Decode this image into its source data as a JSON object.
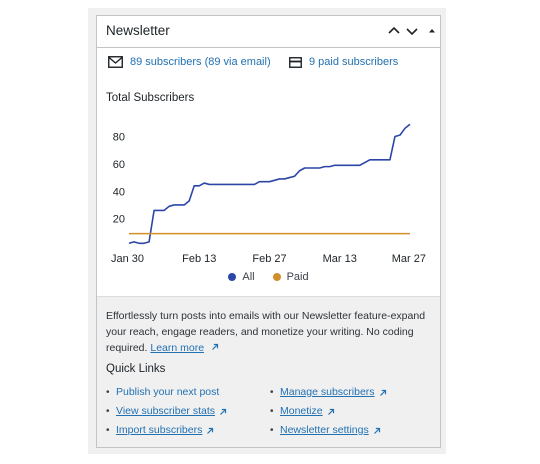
{
  "widget": {
    "title": "Newsletter"
  },
  "stats": {
    "subscribers": "89 subscribers (89 via email)",
    "paid": "9 paid subscribers"
  },
  "chart_data": {
    "type": "line",
    "title": "Total Subscribers",
    "x_ticks": [
      "Jan 30",
      "Feb 13",
      "Feb 27",
      "Mar 13",
      "Mar 27"
    ],
    "y_ticks": [
      20,
      40,
      60,
      80
    ],
    "ylim": [
      0,
      95
    ],
    "legend_position": "bottom",
    "series": [
      {
        "name": "All",
        "color": "#2c46a8",
        "x": [
          "Jan 30",
          "Jan 31",
          "Feb 1",
          "Feb 2",
          "Feb 3",
          "Feb 4",
          "Feb 5",
          "Feb 6",
          "Feb 7",
          "Feb 8",
          "Feb 9",
          "Feb 10",
          "Feb 11",
          "Feb 12",
          "Feb 13",
          "Feb 14",
          "Feb 15",
          "Feb 16",
          "Feb 17",
          "Feb 18",
          "Feb 19",
          "Feb 20",
          "Feb 21",
          "Feb 22",
          "Feb 23",
          "Feb 24",
          "Feb 25",
          "Feb 26",
          "Feb 27",
          "Feb 28",
          "Mar 1",
          "Mar 2",
          "Mar 3",
          "Mar 4",
          "Mar 5",
          "Mar 6",
          "Mar 7",
          "Mar 8",
          "Mar 9",
          "Mar 10",
          "Mar 11",
          "Mar 12",
          "Mar 13",
          "Mar 14",
          "Mar 15",
          "Mar 16",
          "Mar 17",
          "Mar 18",
          "Mar 19",
          "Mar 20",
          "Mar 21",
          "Mar 22",
          "Mar 23",
          "Mar 24",
          "Mar 25",
          "Mar 26",
          "Mar 27"
        ],
        "values": [
          2,
          3,
          2,
          2,
          3,
          26,
          26,
          26,
          29,
          30,
          30,
          30,
          33,
          44,
          44,
          46,
          45,
          45,
          45,
          45,
          45,
          45,
          45,
          45,
          45,
          45,
          47,
          47,
          47,
          48,
          49,
          49,
          50,
          51,
          55,
          57,
          57,
          57,
          57,
          58,
          58,
          59,
          59,
          59,
          59,
          59,
          59,
          61,
          63,
          63,
          63,
          63,
          63,
          80,
          81,
          86,
          89
        ]
      },
      {
        "name": "Paid",
        "color": "#d18f2c",
        "x": [
          "Jan 30",
          "Mar 27"
        ],
        "values": [
          9,
          9
        ]
      }
    ]
  },
  "footer": {
    "description": "Effortlessly turn posts into emails with our Newsletter feature-expand your reach, engage readers, and monetize your writing. No coding required.",
    "learn_more": "Learn more",
    "quick_links_title": "Quick Links",
    "links_left": [
      "Publish your next post",
      "View subscriber stats",
      "Import subscribers"
    ],
    "links_right": [
      "Manage subscribers",
      "Monetize",
      "Newsletter settings"
    ]
  },
  "icons": {
    "collapse_up": "chevron-up-icon",
    "collapse_down": "chevron-down-icon",
    "toggle": "caret-up-icon",
    "email": "envelope-icon",
    "paid": "card-icon",
    "external": "external-link-icon"
  }
}
